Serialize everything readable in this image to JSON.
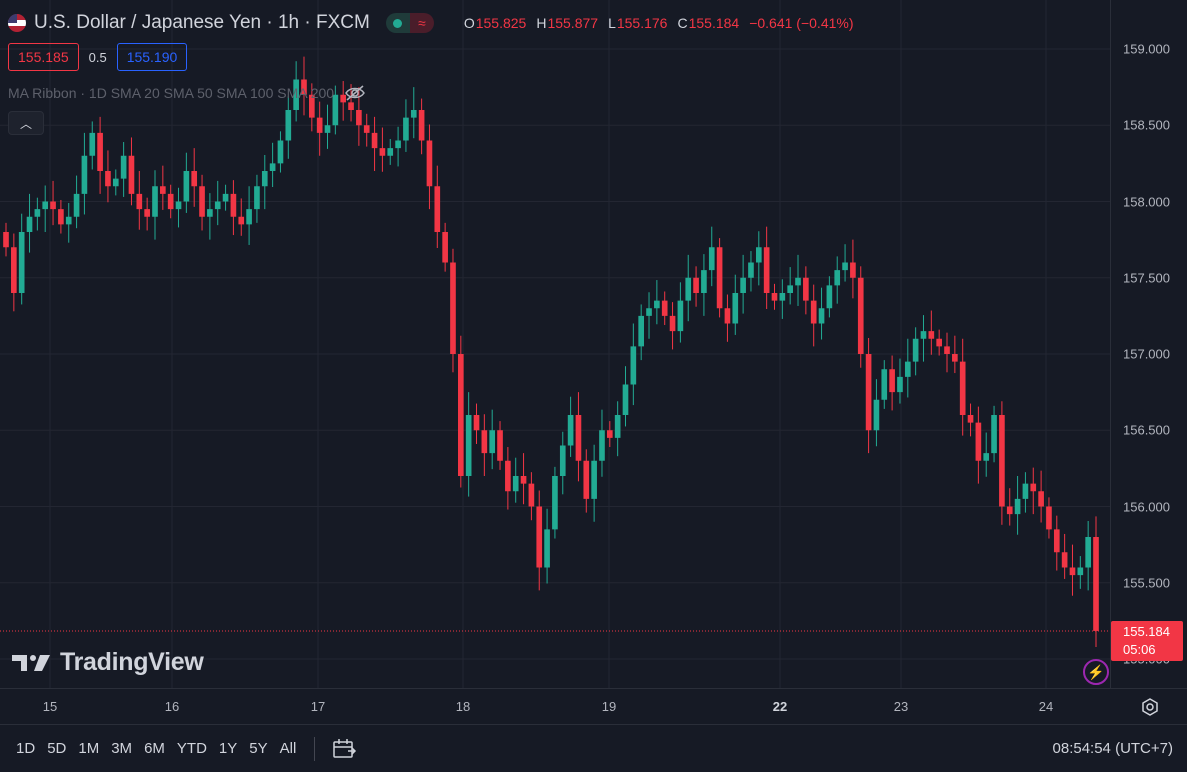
{
  "legend": {
    "symbol": "U.S. Dollar / Japanese Yen · 1h · FXCM",
    "ohlc": [
      {
        "k": "O",
        "v": "155.825"
      },
      {
        "k": "H",
        "v": "155.877"
      },
      {
        "k": "L",
        "v": "155.176"
      },
      {
        "k": "C",
        "v": "155.184"
      }
    ],
    "change": "−0.641 (−0.41%)",
    "flag_icon": "us-flag-icon",
    "pill_icon": "market-status-icon"
  },
  "bid": "155.185",
  "spread": "0.5",
  "ask": "155.190",
  "indicator": {
    "label": "MA Ribbon · 1D SMA 20 SMA 50 SMA 100 SMA 200",
    "icon": "eye-off-icon"
  },
  "watermark": "TradingView",
  "last_price": {
    "price": "155.184",
    "countdown": "05:06"
  },
  "price_axis": [
    "159.000",
    "158.500",
    "158.000",
    "157.500",
    "157.000",
    "156.500",
    "156.000",
    "155.500",
    "155.000"
  ],
  "time_axis": [
    {
      "label": "15",
      "bold": false
    },
    {
      "label": "16",
      "bold": false
    },
    {
      "label": "17",
      "bold": false
    },
    {
      "label": "18",
      "bold": false
    },
    {
      "label": "19",
      "bold": false
    },
    {
      "label": "22",
      "bold": true
    },
    {
      "label": "23",
      "bold": false
    },
    {
      "label": "24",
      "bold": false
    }
  ],
  "ranges": [
    "1D",
    "5D",
    "1M",
    "3M",
    "6M",
    "YTD",
    "1Y",
    "5Y",
    "All"
  ],
  "clock": "08:54:54 (UTC+7)",
  "colors": {
    "up": "#22ab94",
    "down": "#f23645",
    "bg": "#161a25",
    "grid": "#232632"
  },
  "chart_data": {
    "type": "candlestick",
    "price_range": [
      155.0,
      159.0
    ],
    "days": [
      "15",
      "16",
      "17",
      "18",
      "19",
      "22",
      "23",
      "24"
    ],
    "closes": [
      157.7,
      157.4,
      157.8,
      157.9,
      157.95,
      158.0,
      157.95,
      157.85,
      157.9,
      158.05,
      158.3,
      158.45,
      158.2,
      158.1,
      158.15,
      158.3,
      158.05,
      157.95,
      157.9,
      158.1,
      158.05,
      157.95,
      158.0,
      158.2,
      158.1,
      157.9,
      157.95,
      158.0,
      158.05,
      157.9,
      157.85,
      157.95,
      158.1,
      158.2,
      158.25,
      158.4,
      158.6,
      158.8,
      158.7,
      158.55,
      158.45,
      158.5,
      158.7,
      158.65,
      158.6,
      158.5,
      158.45,
      158.35,
      158.3,
      158.35,
      158.4,
      158.55,
      158.6,
      158.4,
      158.1,
      157.8,
      157.6,
      157.0,
      156.2,
      156.6,
      156.5,
      156.35,
      156.5,
      156.3,
      156.1,
      156.2,
      156.15,
      156.0,
      155.6,
      155.85,
      156.2,
      156.4,
      156.6,
      156.3,
      156.05,
      156.3,
      156.5,
      156.45,
      156.6,
      156.8,
      157.05,
      157.25,
      157.3,
      157.35,
      157.25,
      157.15,
      157.35,
      157.5,
      157.4,
      157.55,
      157.7,
      157.3,
      157.2,
      157.4,
      157.5,
      157.6,
      157.7,
      157.4,
      157.35,
      157.4,
      157.45,
      157.5,
      157.35,
      157.2,
      157.3,
      157.45,
      157.55,
      157.6,
      157.5,
      157.0,
      156.5,
      156.7,
      156.9,
      156.75,
      156.85,
      156.95,
      157.1,
      157.15,
      157.1,
      157.05,
      157.0,
      156.95,
      156.6,
      156.55,
      156.3,
      156.35,
      156.6,
      156.0,
      155.95,
      156.05,
      156.15,
      156.1,
      156.0,
      155.85,
      155.7,
      155.6,
      155.55,
      155.6,
      155.8,
      155.184
    ]
  }
}
